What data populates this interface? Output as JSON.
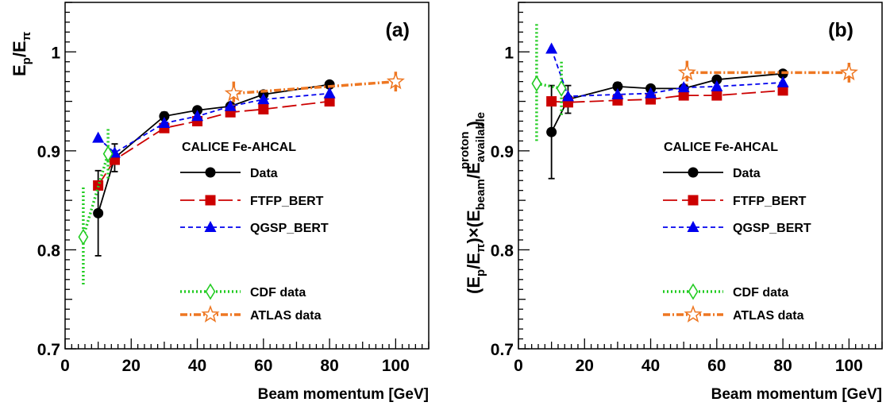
{
  "chart_data": [
    {
      "type": "scatter",
      "panel_label": "(a)",
      "ylabel": "E_p/E_π",
      "ylabel_parts": {
        "e1": "E",
        "s1": "p",
        "slash": "/E",
        "s2": "π"
      },
      "xlabel": "Beam momentum [GeV]",
      "xlim": [
        0,
        110
      ],
      "ylim": [
        0.7,
        1.05
      ],
      "x_ticks": [
        "0",
        "20",
        "40",
        "60",
        "80",
        "100"
      ],
      "y_ticks": [
        "0.7",
        "0.8",
        "0.9",
        "1"
      ],
      "legend_title": "CALICE Fe-AHCAL",
      "legend_placement": "center-right",
      "series": [
        {
          "name": "Data",
          "key": "data",
          "color": "#000000",
          "marker": "circle",
          "line": "solid",
          "x": [
            10,
            15,
            30,
            40,
            50,
            60,
            80
          ],
          "y": [
            0.837,
            0.893,
            0.935,
            0.941,
            0.945,
            0.957,
            0.967
          ],
          "err": [
            0.043,
            0.014,
            0.004,
            0.003,
            0.003,
            0.003,
            0.003
          ]
        },
        {
          "name": "FTFP_BERT",
          "key": "ftfp",
          "color": "#cc0000",
          "marker": "square",
          "line": "longdash",
          "x": [
            10,
            15,
            30,
            40,
            50,
            60,
            80
          ],
          "y": [
            0.865,
            0.891,
            0.923,
            0.93,
            0.939,
            0.942,
            0.95
          ]
        },
        {
          "name": "QGSP_BERT",
          "key": "qgsp",
          "color": "#0000ee",
          "marker": "triangle",
          "line": "dashed",
          "x": [
            10,
            15,
            30,
            40,
            50,
            60,
            80
          ],
          "y": [
            0.913,
            0.898,
            0.928,
            0.935,
            0.945,
            0.952,
            0.958
          ]
        },
        {
          "name": "CDF data",
          "key": "cdf",
          "color": "#22cc22",
          "marker": "diamond-open",
          "line": "dotted",
          "x": [
            5.5,
            13
          ],
          "y": [
            0.813,
            0.897
          ],
          "err": [
            0.05,
            0.025
          ]
        },
        {
          "name": "ATLAS data",
          "key": "atlas",
          "color": "#ee7722",
          "marker": "star-open",
          "line": "dashdot",
          "x": [
            51,
            100
          ],
          "y": [
            0.958,
            0.97
          ],
          "err": [
            0.012,
            0.01
          ]
        }
      ]
    },
    {
      "type": "scatter",
      "panel_label": "(b)",
      "ylabel": "(E_p/E_π)×(E_beam/E_available^proton)",
      "ylabel_parts": {
        "open": "(E",
        "s1": "p",
        "slash1": "/E",
        "s2": "π",
        "times": ")×(E",
        "s3": "beam",
        "slash2": "/E",
        "s4": "available",
        "sup": "proton",
        "close": ")"
      },
      "xlabel": "Beam momentum [GeV]",
      "xlim": [
        0,
        110
      ],
      "ylim": [
        0.7,
        1.05
      ],
      "x_ticks": [
        "0",
        "20",
        "40",
        "60",
        "80",
        "100"
      ],
      "y_ticks": [
        "0.7",
        "0.8",
        "0.9",
        "1"
      ],
      "legend_title": "CALICE Fe-AHCAL",
      "legend_placement": "center-right",
      "series": [
        {
          "name": "Data",
          "key": "data",
          "color": "#000000",
          "marker": "circle",
          "line": "solid",
          "x": [
            10,
            15,
            30,
            40,
            50,
            60,
            80
          ],
          "y": [
            0.919,
            0.952,
            0.965,
            0.963,
            0.963,
            0.972,
            0.978
          ],
          "err": [
            0.047,
            0.014,
            0.004,
            0.003,
            0.003,
            0.003,
            0.003
          ]
        },
        {
          "name": "FTFP_BERT",
          "key": "ftfp",
          "color": "#cc0000",
          "marker": "square",
          "line": "longdash",
          "x": [
            10,
            15,
            30,
            40,
            50,
            60,
            80
          ],
          "y": [
            0.95,
            0.949,
            0.951,
            0.952,
            0.956,
            0.956,
            0.961
          ]
        },
        {
          "name": "QGSP_BERT",
          "key": "qgsp",
          "color": "#0000ee",
          "marker": "triangle",
          "line": "dashed",
          "x": [
            10,
            15,
            30,
            40,
            50,
            60,
            80
          ],
          "y": [
            1.003,
            0.955,
            0.957,
            0.958,
            0.964,
            0.965,
            0.969
          ]
        },
        {
          "name": "CDF data",
          "key": "cdf",
          "color": "#22cc22",
          "marker": "diamond-open",
          "line": "dotted",
          "x": [
            5.5,
            13
          ],
          "y": [
            0.968,
            0.963
          ],
          "err": [
            0.06,
            0.027
          ]
        },
        {
          "name": "ATLAS data",
          "key": "atlas",
          "color": "#ee7722",
          "marker": "star-open",
          "line": "dashdot",
          "x": [
            51,
            100
          ],
          "y": [
            0.979,
            0.979
          ],
          "err": [
            0.012,
            0.01
          ]
        }
      ]
    }
  ]
}
